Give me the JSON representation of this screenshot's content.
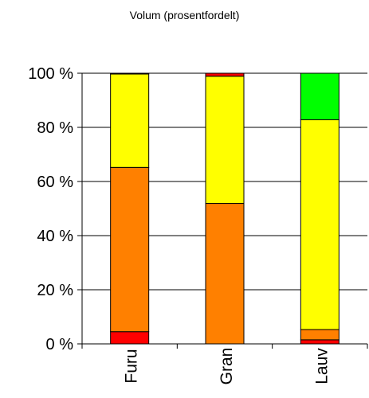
{
  "chart_data": {
    "type": "bar",
    "stacked": true,
    "title": "Volum (prosentfordelt)",
    "categories": [
      "Furu",
      "Gran",
      "Lauv"
    ],
    "series": [
      {
        "color": "#ff0000",
        "values": [
          4.5,
          0,
          1.5
        ]
      },
      {
        "color": "#ff8000",
        "values": [
          60.7,
          51.9,
          3.8
        ]
      },
      {
        "color": "#ffff00",
        "values": [
          34.5,
          47,
          77.5
        ]
      },
      {
        "color": "#ff0000",
        "values": [
          0.3,
          1.1,
          0
        ]
      },
      {
        "color": "#00ff00",
        "values": [
          0,
          0,
          17.2
        ]
      }
    ],
    "ylim": [
      0,
      100
    ],
    "yticks": [
      {
        "value": 0,
        "label": "0 %"
      },
      {
        "value": 20,
        "label": "20 %"
      },
      {
        "value": 40,
        "label": "40 %"
      },
      {
        "value": 60,
        "label": "60 %"
      },
      {
        "value": 80,
        "label": "80 %"
      },
      {
        "value": 100,
        "label": "100 %"
      }
    ],
    "grid": true
  }
}
